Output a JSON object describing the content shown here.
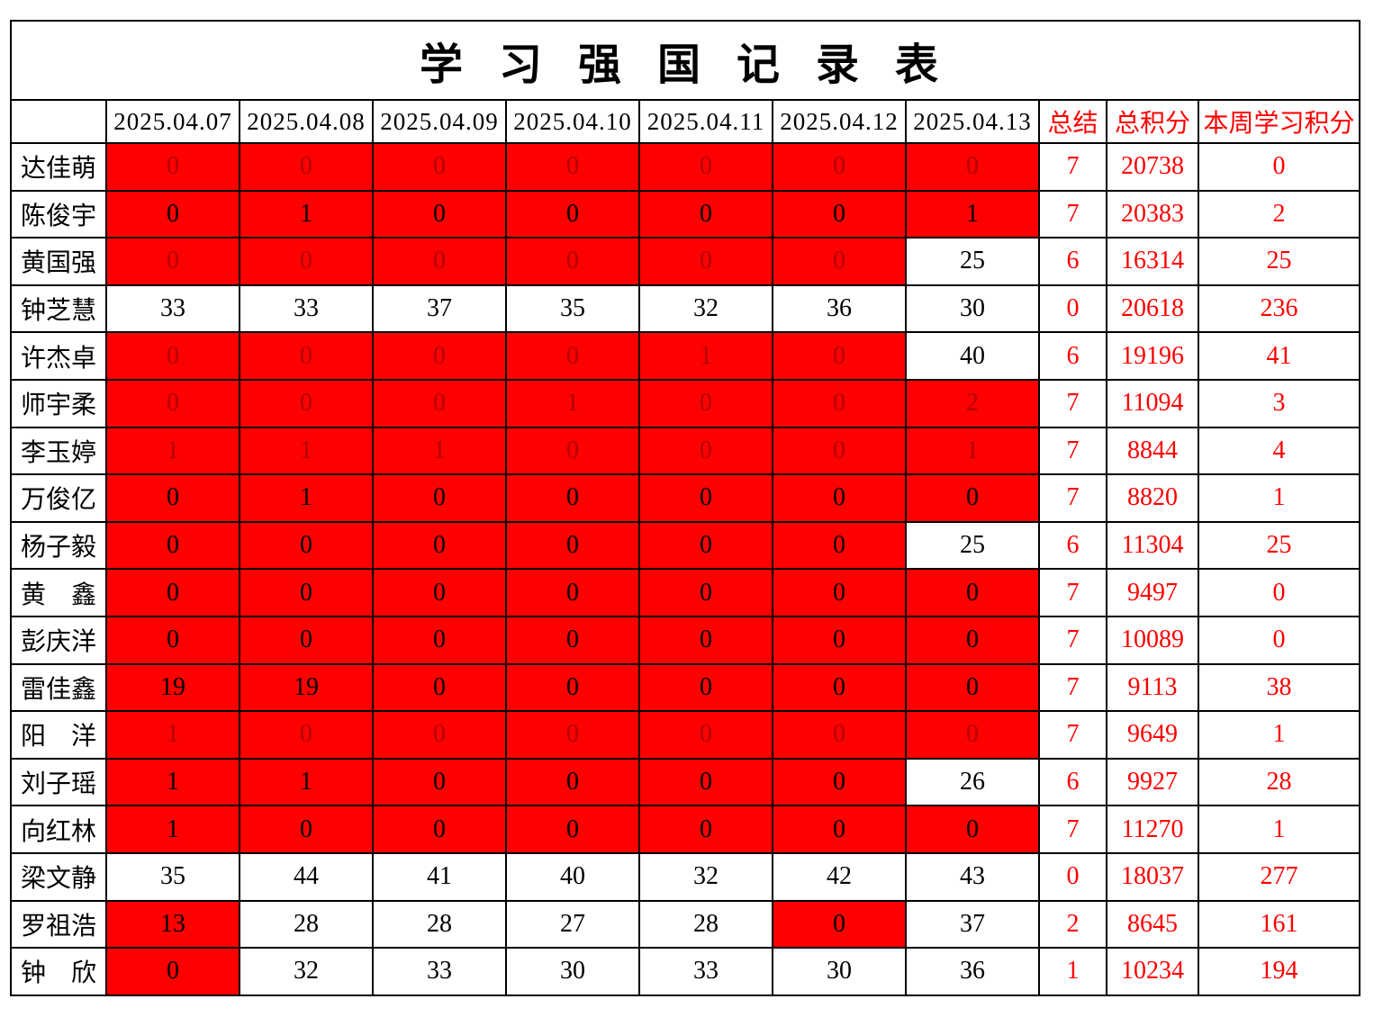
{
  "title": "学 习 强 国 记 录 表",
  "header": {
    "corner": "",
    "dates": [
      "2025.04.07",
      "2025.04.08",
      "2025.04.09",
      "2025.04.10",
      "2025.04.11",
      "2025.04.12",
      "2025.04.13"
    ],
    "summary": "总结",
    "total_points": "总积分",
    "week_points": "本周学习积分"
  },
  "colors": {
    "highlight_bg": "#ff0000",
    "dim_red_text": "#b00000",
    "red_text": "#ff0000",
    "border": "#000000"
  },
  "legend": {
    "cell_styles": {
      "rd": "red background, dark-red number",
      "rk": "red background, black number",
      "wk": "white background, black number"
    }
  },
  "rows": [
    {
      "name": "达佳萌",
      "cells": [
        [
          "0",
          "rd"
        ],
        [
          "0",
          "rd"
        ],
        [
          "0",
          "rd"
        ],
        [
          "0",
          "rd"
        ],
        [
          "0",
          "rd"
        ],
        [
          "0",
          "rd"
        ],
        [
          "0",
          "rd"
        ]
      ],
      "summary": "7",
      "total": "20738",
      "week": "0"
    },
    {
      "name": "陈俊宇",
      "cells": [
        [
          "0",
          "rk"
        ],
        [
          "1",
          "rk"
        ],
        [
          "0",
          "rk"
        ],
        [
          "0",
          "rk"
        ],
        [
          "0",
          "rk"
        ],
        [
          "0",
          "rk"
        ],
        [
          "1",
          "rk"
        ]
      ],
      "summary": "7",
      "total": "20383",
      "week": "2"
    },
    {
      "name": "黄国强",
      "cells": [
        [
          "0",
          "rd"
        ],
        [
          "0",
          "rd"
        ],
        [
          "0",
          "rd"
        ],
        [
          "0",
          "rd"
        ],
        [
          "0",
          "rd"
        ],
        [
          "0",
          "rd"
        ],
        [
          "25",
          "wk"
        ]
      ],
      "summary": "6",
      "total": "16314",
      "week": "25"
    },
    {
      "name": "钟芝慧",
      "cells": [
        [
          "33",
          "wk"
        ],
        [
          "33",
          "wk"
        ],
        [
          "37",
          "wk"
        ],
        [
          "35",
          "wk"
        ],
        [
          "32",
          "wk"
        ],
        [
          "36",
          "wk"
        ],
        [
          "30",
          "wk"
        ]
      ],
      "summary": "0",
      "total": "20618",
      "week": "236"
    },
    {
      "name": "许杰卓",
      "cells": [
        [
          "0",
          "rd"
        ],
        [
          "0",
          "rd"
        ],
        [
          "0",
          "rd"
        ],
        [
          "0",
          "rd"
        ],
        [
          "1",
          "rd"
        ],
        [
          "0",
          "rd"
        ],
        [
          "40",
          "wk"
        ]
      ],
      "summary": "6",
      "total": "19196",
      "week": "41"
    },
    {
      "name": "师宇柔",
      "cells": [
        [
          "0",
          "rd"
        ],
        [
          "0",
          "rd"
        ],
        [
          "0",
          "rd"
        ],
        [
          "1",
          "rd"
        ],
        [
          "0",
          "rd"
        ],
        [
          "0",
          "rd"
        ],
        [
          "2",
          "rd"
        ]
      ],
      "summary": "7",
      "total": "11094",
      "week": "3"
    },
    {
      "name": "李玉婷",
      "cells": [
        [
          "1",
          "rd"
        ],
        [
          "1",
          "rd"
        ],
        [
          "1",
          "rd"
        ],
        [
          "0",
          "rd"
        ],
        [
          "0",
          "rd"
        ],
        [
          "0",
          "rd"
        ],
        [
          "1",
          "rd"
        ]
      ],
      "summary": "7",
      "total": "8844",
      "week": "4"
    },
    {
      "name": "万俊亿",
      "cells": [
        [
          "0",
          "rk"
        ],
        [
          "1",
          "rk"
        ],
        [
          "0",
          "rk"
        ],
        [
          "0",
          "rk"
        ],
        [
          "0",
          "rk"
        ],
        [
          "0",
          "rk"
        ],
        [
          "0",
          "rk"
        ]
      ],
      "summary": "7",
      "total": "8820",
      "week": "1"
    },
    {
      "name": "杨子毅",
      "cells": [
        [
          "0",
          "rk"
        ],
        [
          "0",
          "rk"
        ],
        [
          "0",
          "rk"
        ],
        [
          "0",
          "rk"
        ],
        [
          "0",
          "rk"
        ],
        [
          "0",
          "rk"
        ],
        [
          "25",
          "wk"
        ]
      ],
      "summary": "6",
      "total": "11304",
      "week": "25"
    },
    {
      "name": "黄　鑫",
      "cells": [
        [
          "0",
          "rk"
        ],
        [
          "0",
          "rk"
        ],
        [
          "0",
          "rk"
        ],
        [
          "0",
          "rk"
        ],
        [
          "0",
          "rk"
        ],
        [
          "0",
          "rk"
        ],
        [
          "0",
          "rk"
        ]
      ],
      "summary": "7",
      "total": "9497",
      "week": "0"
    },
    {
      "name": "彭庆洋",
      "cells": [
        [
          "0",
          "rk"
        ],
        [
          "0",
          "rk"
        ],
        [
          "0",
          "rk"
        ],
        [
          "0",
          "rk"
        ],
        [
          "0",
          "rk"
        ],
        [
          "0",
          "rk"
        ],
        [
          "0",
          "rk"
        ]
      ],
      "summary": "7",
      "total": "10089",
      "week": "0"
    },
    {
      "name": "雷佳鑫",
      "cells": [
        [
          "19",
          "rk"
        ],
        [
          "19",
          "rk"
        ],
        [
          "0",
          "rk"
        ],
        [
          "0",
          "rk"
        ],
        [
          "0",
          "rk"
        ],
        [
          "0",
          "rk"
        ],
        [
          "0",
          "rk"
        ]
      ],
      "summary": "7",
      "total": "9113",
      "week": "38"
    },
    {
      "name": "阳　洋",
      "cells": [
        [
          "1",
          "rd"
        ],
        [
          "0",
          "rd"
        ],
        [
          "0",
          "rd"
        ],
        [
          "0",
          "rd"
        ],
        [
          "0",
          "rd"
        ],
        [
          "0",
          "rd"
        ],
        [
          "0",
          "rd"
        ]
      ],
      "summary": "7",
      "total": "9649",
      "week": "1"
    },
    {
      "name": "刘子瑶",
      "cells": [
        [
          "1",
          "rk"
        ],
        [
          "1",
          "rk"
        ],
        [
          "0",
          "rk"
        ],
        [
          "0",
          "rk"
        ],
        [
          "0",
          "rk"
        ],
        [
          "0",
          "rk"
        ],
        [
          "26",
          "wk"
        ]
      ],
      "summary": "6",
      "total": "9927",
      "week": "28"
    },
    {
      "name": "向红林",
      "cells": [
        [
          "1",
          "rk"
        ],
        [
          "0",
          "rk"
        ],
        [
          "0",
          "rk"
        ],
        [
          "0",
          "rk"
        ],
        [
          "0",
          "rk"
        ],
        [
          "0",
          "rk"
        ],
        [
          "0",
          "rk"
        ]
      ],
      "summary": "7",
      "total": "11270",
      "week": "1"
    },
    {
      "name": "梁文静",
      "cells": [
        [
          "35",
          "wk"
        ],
        [
          "44",
          "wk"
        ],
        [
          "41",
          "wk"
        ],
        [
          "40",
          "wk"
        ],
        [
          "32",
          "wk"
        ],
        [
          "42",
          "wk"
        ],
        [
          "43",
          "wk"
        ]
      ],
      "summary": "0",
      "total": "18037",
      "week": "277"
    },
    {
      "name": "罗祖浩",
      "cells": [
        [
          "13",
          "rk"
        ],
        [
          "28",
          "wk"
        ],
        [
          "28",
          "wk"
        ],
        [
          "27",
          "wk"
        ],
        [
          "28",
          "wk"
        ],
        [
          "0",
          "rk"
        ],
        [
          "37",
          "wk"
        ]
      ],
      "summary": "2",
      "total": "8645",
      "week": "161"
    },
    {
      "name": "钟　欣",
      "cells": [
        [
          "0",
          "rk"
        ],
        [
          "32",
          "wk"
        ],
        [
          "33",
          "wk"
        ],
        [
          "30",
          "wk"
        ],
        [
          "33",
          "wk"
        ],
        [
          "30",
          "wk"
        ],
        [
          "36",
          "wk"
        ]
      ],
      "summary": "1",
      "total": "10234",
      "week": "194"
    }
  ]
}
